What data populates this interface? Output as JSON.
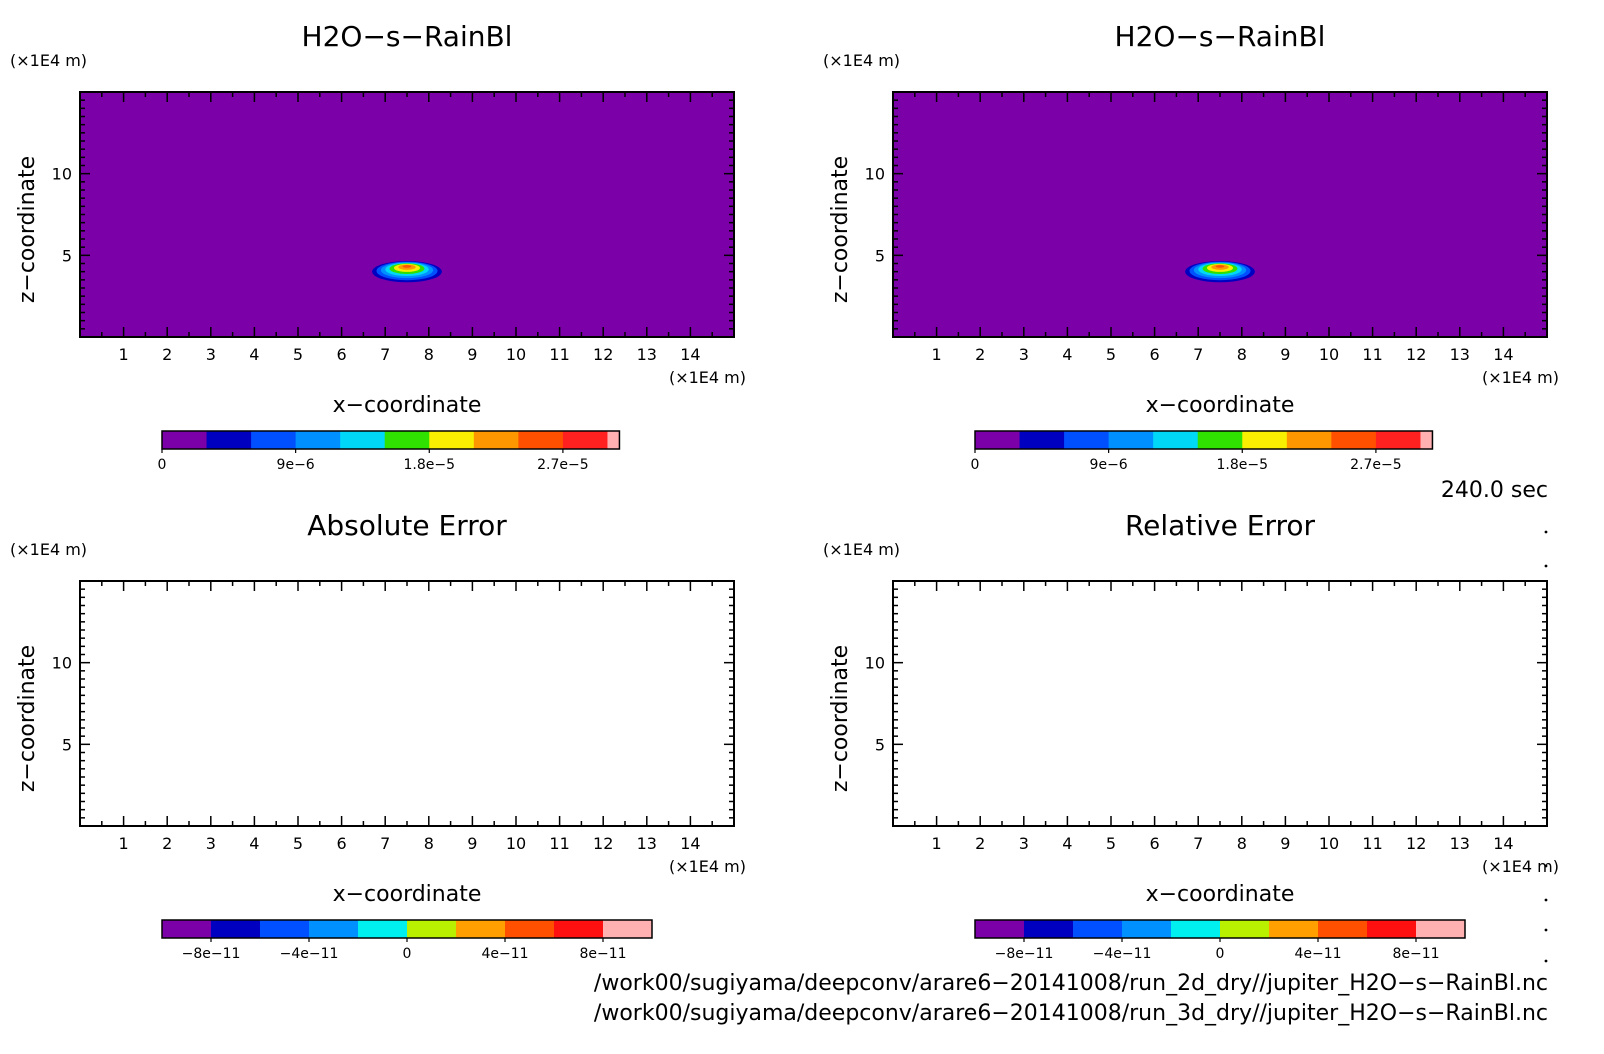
{
  "panels": [
    {
      "title": "H2O−s−RainBl",
      "field": "blob",
      "chart_data": {
        "type": "heatmap",
        "title": "H2O−s−RainBl",
        "xlabel": "x−coordinate",
        "ylabel": "z−coordinate",
        "x_unit": "(×1E4 m)",
        "y_unit": "(×1E4 m)",
        "xlim": [
          0,
          15
        ],
        "ylim": [
          0,
          15
        ],
        "x_ticks": [
          1,
          2,
          3,
          4,
          5,
          6,
          7,
          8,
          9,
          10,
          11,
          12,
          13,
          14
        ],
        "y_ticks": [
          5,
          10
        ],
        "blob": {
          "x_center": 7.5,
          "z_center": 4.0,
          "x_halfwidth": 0.8,
          "z_halfheight": 0.65,
          "peak": 2.9e-05
        },
        "colorbar": {
          "colors": [
            "#7b00a8",
            "#0000c0",
            "#0050ff",
            "#0090ff",
            "#00d8f8",
            "#30e000",
            "#f8f000",
            "#ff9800",
            "#ff5000",
            "#ff2020",
            "#ffb0b0"
          ],
          "tick_values": [
            "0",
            "9e−6",
            "1.8e−5",
            "2.7e−5"
          ],
          "tick_positions": [
            0,
            3,
            6,
            9
          ]
        }
      }
    },
    {
      "title": "H2O−s−RainBl",
      "field": "blob",
      "chart_data": {
        "type": "heatmap",
        "title": "H2O−s−RainBl",
        "xlabel": "x−coordinate",
        "ylabel": "z−coordinate",
        "x_unit": "(×1E4 m)",
        "y_unit": "(×1E4 m)",
        "xlim": [
          0,
          15
        ],
        "ylim": [
          0,
          15
        ],
        "x_ticks": [
          1,
          2,
          3,
          4,
          5,
          6,
          7,
          8,
          9,
          10,
          11,
          12,
          13,
          14
        ],
        "y_ticks": [
          5,
          10
        ],
        "blob": {
          "x_center": 7.5,
          "z_center": 4.0,
          "x_halfwidth": 0.8,
          "z_halfheight": 0.65,
          "peak": 2.9e-05
        },
        "colorbar": {
          "colors": [
            "#7b00a8",
            "#0000c0",
            "#0050ff",
            "#0090ff",
            "#00d8f8",
            "#30e000",
            "#f8f000",
            "#ff9800",
            "#ff5000",
            "#ff2020",
            "#ffb0b0"
          ],
          "tick_values": [
            "0",
            "9e−6",
            "1.8e−5",
            "2.7e−5"
          ],
          "tick_positions": [
            0,
            3,
            6,
            9
          ]
        }
      }
    },
    {
      "title": "Absolute Error",
      "field": "empty",
      "chart_data": {
        "type": "heatmap",
        "title": "Absolute Error",
        "xlabel": "x−coordinate",
        "ylabel": "z−coordinate",
        "x_unit": "(×1E4 m)",
        "y_unit": "(×1E4 m)",
        "xlim": [
          0,
          15
        ],
        "ylim": [
          0,
          15
        ],
        "x_ticks": [
          1,
          2,
          3,
          4,
          5,
          6,
          7,
          8,
          9,
          10,
          11,
          12,
          13,
          14
        ],
        "y_ticks": [
          5,
          10
        ],
        "colorbar": {
          "colors": [
            "#7b00a8",
            "#0000c0",
            "#0050ff",
            "#0090ff",
            "#00f0f0",
            "#b8f000",
            "#ffa000",
            "#ff5000",
            "#ff1010",
            "#ffb0b0"
          ],
          "tick_values": [
            "−8e−11",
            "−4e−11",
            "0",
            "4e−11",
            "8e−11"
          ],
          "tick_positions": [
            1,
            3,
            5,
            7,
            9
          ]
        }
      }
    },
    {
      "title": "Relative Error",
      "field": "empty",
      "chart_data": {
        "type": "heatmap",
        "title": "Relative Error",
        "xlabel": "x−coordinate",
        "ylabel": "z−coordinate",
        "x_unit": "(×1E4 m)",
        "y_unit": "(×1E4 m)",
        "xlim": [
          0,
          15
        ],
        "ylim": [
          0,
          15
        ],
        "x_ticks": [
          1,
          2,
          3,
          4,
          5,
          6,
          7,
          8,
          9,
          10,
          11,
          12,
          13,
          14
        ],
        "y_ticks": [
          5,
          10
        ],
        "colorbar": {
          "colors": [
            "#7b00a8",
            "#0000c0",
            "#0050ff",
            "#0090ff",
            "#00f0f0",
            "#b8f000",
            "#ffa000",
            "#ff5000",
            "#ff1010",
            "#ffb0b0"
          ],
          "tick_values": [
            "−8e−11",
            "−4e−11",
            "0",
            "4e−11",
            "8e−11"
          ],
          "tick_positions": [
            1,
            3,
            5,
            7,
            9
          ]
        }
      }
    }
  ],
  "time_label": "240.0 sec",
  "file_paths": [
    "/work00/sugiyama/deepconv/arare6−20141008/run_2d_dry//jupiter_H2O−s−RainBl.nc",
    "/work00/sugiyama/deepconv/arare6−20141008/run_3d_dry//jupiter_H2O−s−RainBl.nc"
  ],
  "colors": {
    "background_field": "#7b00a8",
    "frame": "#000000"
  }
}
